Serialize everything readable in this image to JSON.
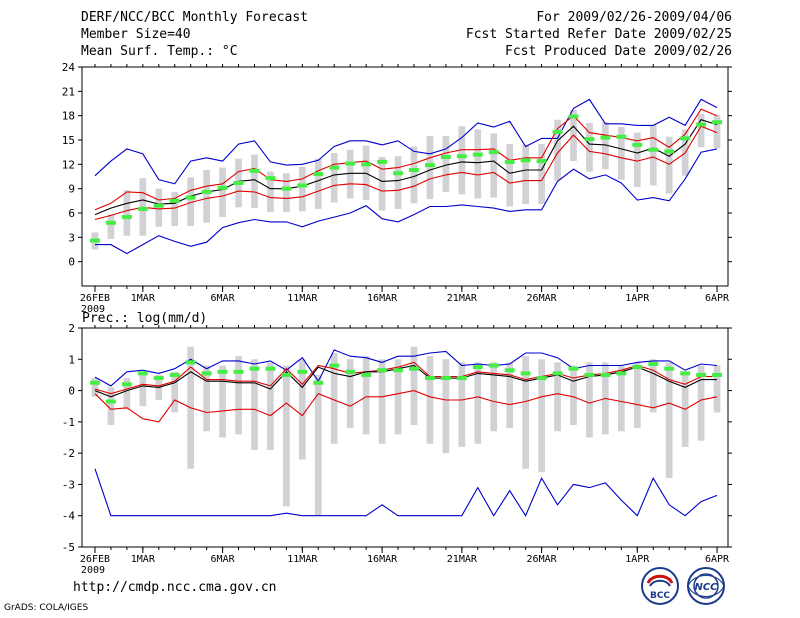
{
  "header": {
    "line1": "DERF/NCC/BCC Monthly Forecast",
    "line2": "Member Size=40",
    "line3": "Mean Surf. Temp.: °C",
    "right1": "For 2009/02/26-2009/04/06",
    "right2": "Fcst Started Refer Date 2009/02/25",
    "right3": "Fcst Produced Date 2009/02/26"
  },
  "footer": {
    "url": "http://cmdp.ncc.cma.gov.cn",
    "credit": "GrADS: COLA/IGES",
    "logo_bcc_text": "BCC",
    "logo_ncc_text": "NCC"
  },
  "colors": {
    "median": "#000000",
    "inner": "#e00000",
    "outer": "#0000cc",
    "box": "#d2d2d6",
    "clim": "#44ee44"
  },
  "chart_data": [
    {
      "type": "line",
      "title": "Mean Surf. Temp.: °C",
      "year_label": "2009",
      "ylim": [
        -3,
        24
      ],
      "yticks": [
        0,
        3,
        6,
        9,
        12,
        15,
        18,
        21,
        24
      ],
      "x_days": 40,
      "xticks": [
        {
          "day": 1,
          "label": "26FEB"
        },
        {
          "day": 4,
          "label": "1MAR"
        },
        {
          "day": 9,
          "label": "6MAR"
        },
        {
          "day": 14,
          "label": "11MAR"
        },
        {
          "day": 19,
          "label": "16MAR"
        },
        {
          "day": 24,
          "label": "21MAR"
        },
        {
          "day": 29,
          "label": "26MAR"
        },
        {
          "day": 35,
          "label": "1APR"
        },
        {
          "day": 40,
          "label": "6APR"
        }
      ],
      "series": [
        {
          "name": "max",
          "role": "outer",
          "values": [
            10.6,
            12.4,
            13.9,
            13.3,
            10.1,
            9.6,
            12.4,
            12.8,
            12.4,
            14.5,
            14.9,
            12.3,
            11.9,
            12.0,
            12.5,
            14.2,
            14.9,
            14.9,
            14.4,
            14.9,
            13.6,
            13.3,
            13.9,
            15.3,
            17.1,
            16.6,
            17.3,
            14.2,
            15.2,
            15.2,
            18.9,
            20.0,
            17.0,
            17.0,
            16.8,
            16.8,
            17.8,
            16.8,
            20.0,
            19.0
          ]
        },
        {
          "name": "upper",
          "role": "inner",
          "values": [
            6.4,
            7.2,
            8.6,
            8.5,
            7.6,
            7.8,
            8.8,
            9.3,
            9.6,
            11.1,
            11.5,
            10.1,
            9.9,
            10.2,
            11.2,
            12.0,
            12.2,
            12.4,
            11.4,
            11.6,
            12.1,
            12.8,
            13.4,
            13.8,
            13.8,
            13.9,
            12.5,
            12.8,
            12.8,
            16.4,
            18.0,
            15.9,
            15.6,
            15.3,
            14.9,
            15.3,
            14.1,
            15.7,
            18.8,
            18.0
          ]
        },
        {
          "name": "median",
          "role": "median",
          "values": [
            5.8,
            6.6,
            7.2,
            7.6,
            7.1,
            7.2,
            8.1,
            8.6,
            8.9,
            9.9,
            10.1,
            9.0,
            9.0,
            9.3,
            10.0,
            10.7,
            10.9,
            10.9,
            9.9,
            10.0,
            10.5,
            11.3,
            11.9,
            12.3,
            12.2,
            12.4,
            10.9,
            11.3,
            11.3,
            14.9,
            16.7,
            14.5,
            14.4,
            13.9,
            13.4,
            14.0,
            13.0,
            14.5,
            17.5,
            16.9
          ]
        },
        {
          "name": "lower",
          "role": "inner",
          "values": [
            5.2,
            5.7,
            6.3,
            6.7,
            6.5,
            6.6,
            7.3,
            7.8,
            8.1,
            8.7,
            8.6,
            7.9,
            7.8,
            8.0,
            8.7,
            9.4,
            9.6,
            9.5,
            8.7,
            8.8,
            9.3,
            10.2,
            10.7,
            11.0,
            10.7,
            11.0,
            9.7,
            10.0,
            10.0,
            13.4,
            15.6,
            13.6,
            13.3,
            12.8,
            12.4,
            12.9,
            12.0,
            13.4,
            16.7,
            15.9
          ]
        },
        {
          "name": "min",
          "role": "outer",
          "values": [
            2.1,
            2.1,
            1.0,
            2.1,
            3.2,
            2.5,
            1.9,
            2.4,
            4.2,
            4.8,
            5.2,
            4.9,
            4.9,
            4.3,
            5.0,
            5.5,
            6.0,
            6.9,
            5.3,
            4.9,
            5.8,
            6.8,
            6.8,
            7.0,
            6.8,
            6.6,
            6.2,
            6.4,
            6.4,
            9.9,
            11.4,
            10.2,
            10.7,
            9.7,
            7.6,
            7.9,
            7.5,
            10.2,
            13.5,
            13.9
          ]
        }
      ],
      "boxes": {
        "low": [
          1.5,
          2.8,
          3.2,
          3.2,
          4.3,
          4.4,
          4.4,
          4.8,
          5.5,
          6.7,
          6.6,
          6.1,
          6.1,
          6.2,
          6.5,
          7.3,
          7.8,
          7.6,
          6.3,
          6.5,
          7.2,
          7.7,
          8.6,
          8.3,
          7.8,
          7.9,
          6.8,
          7.1,
          7.1,
          10.0,
          12.4,
          11.1,
          11.4,
          10.1,
          9.2,
          9.4,
          8.4,
          10.6,
          14.1,
          14.0
        ],
        "high": [
          3.6,
          5.8,
          8.8,
          10.3,
          9.0,
          8.6,
          10.4,
          11.3,
          11.6,
          12.7,
          13.2,
          11.1,
          10.9,
          11.7,
          12.7,
          13.4,
          13.8,
          14.3,
          12.9,
          13.0,
          14.2,
          15.5,
          15.5,
          16.7,
          16.3,
          15.8,
          14.5,
          14.4,
          14.5,
          17.5,
          18.7,
          17.1,
          17.2,
          16.6,
          15.9,
          16.8,
          15.4,
          16.3,
          18.2,
          18.1
        ]
      },
      "climatology": [
        2.6,
        4.8,
        5.5,
        6.5,
        6.9,
        7.5,
        7.9,
        8.6,
        9.1,
        9.7,
        11.2,
        10.3,
        9.0,
        9.4,
        10.8,
        11.6,
        12.1,
        12.0,
        12.3,
        10.9,
        11.3,
        11.9,
        12.9,
        13.0,
        13.2,
        13.5,
        12.3,
        12.5,
        12.4,
        16.0,
        17.9,
        15.1,
        15.3,
        15.4,
        14.4,
        13.8,
        13.6,
        15.2,
        16.9,
        17.2
      ]
    },
    {
      "type": "line",
      "title": "Prec.: log(mm/d)",
      "year_label": "2009",
      "ylim": [
        -5,
        2
      ],
      "yticks": [
        -5,
        -4,
        -3,
        -2,
        -1,
        0,
        1,
        2
      ],
      "x_days": 40,
      "xticks": [
        {
          "day": 1,
          "label": "26FEB"
        },
        {
          "day": 4,
          "label": "1MAR"
        },
        {
          "day": 9,
          "label": "6MAR"
        },
        {
          "day": 14,
          "label": "11MAR"
        },
        {
          "day": 19,
          "label": "16MAR"
        },
        {
          "day": 24,
          "label": "21MAR"
        },
        {
          "day": 29,
          "label": "26MAR"
        },
        {
          "day": 35,
          "label": "1APR"
        },
        {
          "day": 40,
          "label": "6APR"
        }
      ],
      "series": [
        {
          "name": "max",
          "role": "outer",
          "values": [
            0.43,
            0.15,
            0.6,
            0.65,
            0.55,
            0.7,
            1.0,
            0.7,
            0.95,
            0.95,
            0.85,
            0.95,
            0.65,
            1.05,
            0.3,
            1.3,
            1.1,
            1.05,
            0.9,
            1.1,
            1.1,
            1.2,
            1.25,
            0.8,
            0.85,
            0.8,
            0.85,
            1.2,
            1.2,
            1.05,
            0.7,
            0.8,
            0.8,
            0.8,
            0.9,
            0.95,
            0.95,
            0.65,
            0.85,
            0.8
          ]
        },
        {
          "name": "upper",
          "role": "inner",
          "values": [
            0.05,
            -0.1,
            0.05,
            0.2,
            0.15,
            0.3,
            0.75,
            0.35,
            0.35,
            0.3,
            0.3,
            0.15,
            0.7,
            0.2,
            0.8,
            0.7,
            0.55,
            0.6,
            0.65,
            0.75,
            0.9,
            0.45,
            0.45,
            0.45,
            0.6,
            0.55,
            0.5,
            0.35,
            0.45,
            0.55,
            0.4,
            0.5,
            0.55,
            0.65,
            0.8,
            0.65,
            0.35,
            0.2,
            0.45,
            0.45
          ]
        },
        {
          "name": "median",
          "role": "median",
          "values": [
            0.0,
            -0.2,
            0.0,
            0.15,
            0.1,
            0.25,
            0.6,
            0.3,
            0.3,
            0.25,
            0.25,
            0.05,
            0.6,
            0.1,
            0.75,
            0.55,
            0.45,
            0.6,
            0.6,
            0.7,
            0.8,
            0.4,
            0.4,
            0.4,
            0.55,
            0.5,
            0.45,
            0.3,
            0.4,
            0.5,
            0.3,
            0.45,
            0.5,
            0.6,
            0.75,
            0.55,
            0.3,
            0.1,
            0.35,
            0.35
          ]
        },
        {
          "name": "lower",
          "role": "inner",
          "values": [
            -0.1,
            -0.6,
            -0.55,
            -0.9,
            -1.0,
            -0.3,
            -0.55,
            -0.7,
            -0.65,
            -0.6,
            -0.6,
            -0.8,
            -0.4,
            -0.8,
            -0.1,
            -0.3,
            -0.5,
            -0.2,
            -0.2,
            -0.1,
            0.0,
            -0.2,
            -0.3,
            -0.3,
            -0.2,
            -0.35,
            -0.45,
            -0.35,
            -0.2,
            -0.1,
            -0.2,
            -0.4,
            -0.25,
            -0.35,
            -0.45,
            -0.55,
            -0.4,
            -0.6,
            -0.3,
            -0.2
          ]
        },
        {
          "name": "min",
          "role": "outer",
          "values": [
            -2.5,
            -4.0,
            -4.0,
            -4.0,
            -4.0,
            -4.0,
            -4.0,
            -4.0,
            -4.0,
            -4.0,
            -4.0,
            -4.0,
            -3.92,
            -4.0,
            -4.0,
            -4.0,
            -4.0,
            -4.0,
            -3.65,
            -4.0,
            -4.0,
            -4.0,
            -4.0,
            -4.0,
            -3.1,
            -4.0,
            -3.2,
            -4.0,
            -2.8,
            -3.65,
            -3.0,
            -3.1,
            -2.95,
            -3.5,
            -4.0,
            -2.8,
            -3.65,
            -4.0,
            -3.55,
            -3.35
          ]
        }
      ],
      "boxes": {
        "low": [
          -0.2,
          -1.1,
          -0.6,
          -0.5,
          -0.3,
          -0.7,
          -2.5,
          -1.3,
          -1.5,
          -1.4,
          -1.9,
          -1.9,
          -3.7,
          -2.2,
          -4.0,
          -1.7,
          -1.2,
          -1.4,
          -1.7,
          -1.4,
          -1.1,
          -1.7,
          -2.0,
          -1.8,
          -1.7,
          -1.3,
          -1.2,
          -2.5,
          -2.6,
          -1.3,
          -1.1,
          -1.5,
          -1.4,
          -1.3,
          -1.2,
          -0.7,
          -2.8,
          -1.8,
          -1.6,
          -0.7
        ],
        "high": [
          0.4,
          0.1,
          0.4,
          0.5,
          0.5,
          0.6,
          1.4,
          0.8,
          0.8,
          1.1,
          1.0,
          0.9,
          0.8,
          1.0,
          0.5,
          1.2,
          1.0,
          1.1,
          1.0,
          1.0,
          1.4,
          1.1,
          1.0,
          0.9,
          0.9,
          0.9,
          0.9,
          1.1,
          1.0,
          0.9,
          0.8,
          0.9,
          0.9,
          0.8,
          0.9,
          1.0,
          0.9,
          0.6,
          0.8,
          0.8
        ]
      },
      "climatology": [
        0.25,
        -0.35,
        0.2,
        0.55,
        0.4,
        0.5,
        0.9,
        0.55,
        0.6,
        0.6,
        0.7,
        0.7,
        0.5,
        0.6,
        0.25,
        0.8,
        0.6,
        0.5,
        0.65,
        0.65,
        0.7,
        0.4,
        0.4,
        0.4,
        0.75,
        0.8,
        0.65,
        0.55,
        0.4,
        0.55,
        0.7,
        0.5,
        0.5,
        0.55,
        0.75,
        0.85,
        0.7,
        0.55,
        0.5,
        0.5
      ]
    }
  ]
}
